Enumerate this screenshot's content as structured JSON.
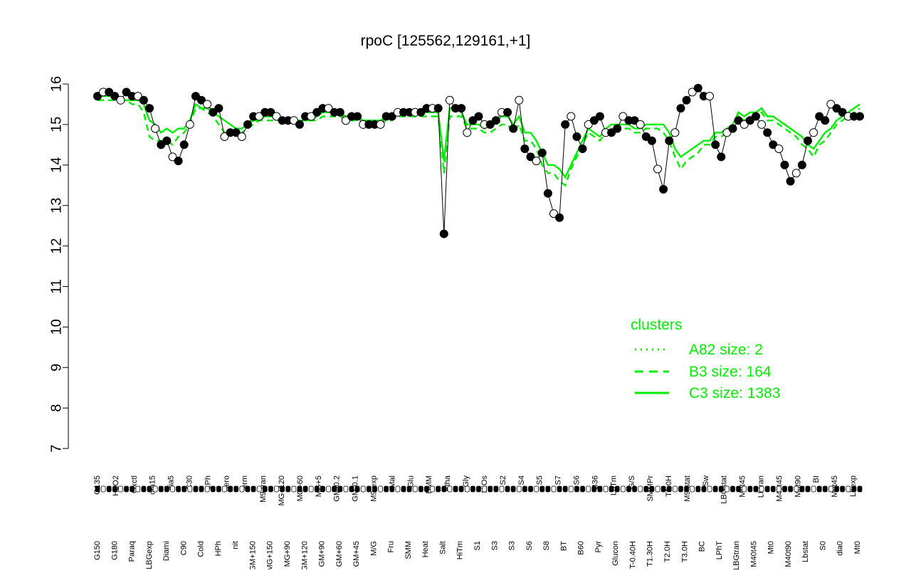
{
  "chart_data": {
    "type": "line",
    "title": "rpoC [125562,129161,+1]",
    "ylim": [
      7,
      16
    ],
    "y_ticks": [
      "7",
      "8",
      "9",
      "10",
      "11",
      "12",
      "13",
      "14",
      "15",
      "16"
    ],
    "x_tick_labels_top": [
      "G135",
      "H2O2",
      "Oxctl",
      "dia15",
      "dia5",
      "C30",
      "LPh",
      "aero",
      "ferm",
      "M9-tran",
      "MG+120",
      "MG+60",
      "MG+5",
      "GM-0.2",
      "GM-0.1",
      "M9-exp",
      "Mal",
      "Glu",
      "BMM",
      "Etha",
      "Gly",
      "HiOs",
      "S2",
      "S4",
      "S5",
      "S7",
      "S6",
      "B36",
      "LoTm",
      "G/S",
      "SMMPr",
      "T1.0H",
      "M9-stat",
      "Sw",
      "LBGstat",
      "M0t45",
      "Lbtran",
      "M40t45",
      "M0t90",
      "BI",
      "M0t45",
      "Lbexp"
    ],
    "x_tick_labels_bottom": [
      "G150",
      "G180",
      "Paraq",
      "LBGexp",
      "Diami",
      "C90",
      "Cold",
      "HPh",
      "nit",
      "GM+150",
      "MG+150",
      "MG+90",
      "GM+120",
      "GM+90",
      "GM+60",
      "GM+45",
      "M/G",
      "Fru",
      "SMM",
      "Heat",
      "Salt",
      "HiTm",
      "S1",
      "S3",
      "S3",
      "S6",
      "S8",
      "BT",
      "B60",
      "Pyr",
      "Glucon",
      "T-0.40H",
      "T1.30H",
      "T2.0H",
      "T3.0H",
      "BC",
      "LPhT",
      "LBGtran",
      "M40t45",
      "Mt0",
      "M40t90",
      "Lbstat",
      "S0",
      "dia0",
      "Mt0"
    ],
    "legend": {
      "title": "clusters",
      "entries": [
        {
          "label": "A82 size: 2",
          "line": "dotted"
        },
        {
          "label": "B3 size: 164",
          "line": "dashed"
        },
        {
          "label": "C3 size: 1383",
          "line": "solid"
        }
      ],
      "placement": "bottom-right"
    },
    "colors": {
      "cluster_lines": "#00ee00",
      "point_fill_dark": "#000000",
      "point_fill_light": "#ffffff",
      "axis": "#000000"
    },
    "series": [
      {
        "name": "C3 size: 1383",
        "line": "solid",
        "values": [
          15.7,
          15.7,
          15.7,
          15.7,
          15.6,
          15.6,
          15.6,
          15.6,
          15.5,
          15.1,
          15.0,
          14.8,
          14.9,
          14.8,
          14.9,
          14.9,
          15.1,
          15.5,
          15.4,
          15.4,
          15.3,
          15.2,
          15.1,
          15.0,
          14.9,
          14.9,
          15.0,
          15.1,
          15.1,
          15.2,
          15.2,
          15.2,
          15.1,
          15.1,
          15.1,
          15.1,
          15.1,
          15.1,
          15.2,
          15.3,
          15.3,
          15.3,
          15.3,
          15.2,
          15.2,
          15.2,
          15.1,
          15.1,
          15.1,
          15.1,
          15.2,
          15.2,
          15.3,
          15.3,
          15.3,
          15.3,
          15.3,
          15.3,
          15.3,
          15.3,
          14.1,
          15.4,
          15.4,
          15.3,
          15.0,
          15.0,
          15.0,
          14.9,
          15.0,
          15.1,
          15.2,
          15.2,
          15.0,
          15.2,
          14.8,
          14.8,
          14.6,
          14.3,
          14.0,
          14.0,
          13.9,
          13.7,
          14.0,
          14.3,
          14.6,
          14.9,
          14.8,
          14.7,
          14.9,
          15.0,
          15.0,
          15.0,
          15.0,
          14.9,
          14.9,
          15.0,
          15.0,
          15.0,
          15.0,
          14.8,
          14.4,
          14.2,
          14.3,
          14.4,
          14.5,
          14.6,
          14.6,
          14.8,
          14.8,
          14.9,
          15.0,
          15.3,
          15.2,
          15.3,
          15.3,
          15.4,
          15.2,
          15.2,
          15.1,
          15.0,
          14.9,
          14.8,
          14.7,
          14.5,
          14.4,
          14.6,
          14.8,
          14.9,
          15.1,
          15.2,
          15.3,
          15.4,
          15.5
        ]
      },
      {
        "name": "B3 size: 164",
        "line": "dashed",
        "values": [
          15.6,
          15.6,
          15.6,
          15.6,
          15.6,
          15.6,
          15.5,
          15.5,
          15.3,
          14.7,
          14.6,
          14.6,
          14.6,
          14.5,
          14.7,
          14.8,
          15.0,
          15.4,
          15.4,
          15.3,
          15.2,
          15.0,
          14.8,
          14.8,
          14.7,
          14.8,
          14.9,
          15.0,
          15.1,
          15.1,
          15.1,
          15.1,
          15.1,
          15.1,
          15.1,
          15.1,
          15.1,
          15.1,
          15.1,
          15.2,
          15.2,
          15.2,
          15.2,
          15.1,
          15.1,
          15.1,
          15.0,
          15.0,
          15.0,
          15.0,
          15.1,
          15.1,
          15.2,
          15.2,
          15.2,
          15.2,
          15.2,
          15.2,
          15.2,
          15.2,
          13.8,
          15.2,
          15.2,
          15.2,
          14.9,
          14.9,
          14.9,
          14.8,
          14.8,
          14.9,
          15.0,
          15.0,
          14.8,
          15.0,
          14.6,
          14.6,
          14.4,
          14.0,
          13.8,
          13.8,
          13.6,
          13.5,
          13.9,
          14.2,
          14.5,
          14.8,
          14.7,
          14.6,
          14.8,
          14.9,
          14.9,
          14.9,
          14.9,
          14.8,
          14.8,
          14.9,
          14.9,
          14.9,
          14.8,
          14.6,
          14.2,
          13.9,
          14.1,
          14.2,
          14.3,
          14.5,
          14.5,
          14.7,
          14.7,
          14.8,
          14.9,
          15.2,
          15.1,
          15.2,
          15.2,
          15.3,
          15.1,
          15.1,
          15.0,
          14.9,
          14.8,
          14.7,
          14.5,
          14.4,
          14.2,
          14.5,
          14.6,
          14.8,
          15.0,
          15.1,
          15.2,
          15.3,
          15.4
        ]
      },
      {
        "name": "rpoC",
        "line": "none",
        "values": [
          15.7,
          15.8,
          15.8,
          15.7,
          15.6,
          15.8,
          15.7,
          15.7,
          15.6,
          15.4,
          14.9,
          14.5,
          14.6,
          14.2,
          14.1,
          14.5,
          15.0,
          15.7,
          15.6,
          15.5,
          15.3,
          15.4,
          14.7,
          14.8,
          14.8,
          14.7,
          15.0,
          15.2,
          15.2,
          15.3,
          15.3,
          15.2,
          15.1,
          15.1,
          15.1,
          15.0,
          15.2,
          15.2,
          15.3,
          15.4,
          15.4,
          15.3,
          15.3,
          15.1,
          15.2,
          15.2,
          15.0,
          15.0,
          15.0,
          15.0,
          15.2,
          15.2,
          15.3,
          15.3,
          15.3,
          15.3,
          15.3,
          15.4,
          15.4,
          15.4,
          12.3,
          15.6,
          15.4,
          15.4,
          14.8,
          15.1,
          15.2,
          15.0,
          15.0,
          15.1,
          15.3,
          15.3,
          14.9,
          15.6,
          14.4,
          14.2,
          14.1,
          14.3,
          13.3,
          12.8,
          12.7,
          15.0,
          15.2,
          14.7,
          14.4,
          15.0,
          15.1,
          15.2,
          14.8,
          14.8,
          14.9,
          15.2,
          15.1,
          15.1,
          15.0,
          14.7,
          14.6,
          13.9,
          13.4,
          14.6,
          14.8,
          15.4,
          15.6,
          15.8,
          15.9,
          15.7,
          15.7,
          14.5,
          14.2,
          14.8,
          14.9,
          15.1,
          15.0,
          15.1,
          15.2,
          15.0,
          14.8,
          14.5,
          14.4,
          14.0,
          13.6,
          13.8,
          14.0,
          14.6,
          14.8,
          15.2,
          15.1,
          15.5,
          15.4,
          15.3,
          15.2,
          15.2,
          15.2
        ]
      }
    ]
  }
}
